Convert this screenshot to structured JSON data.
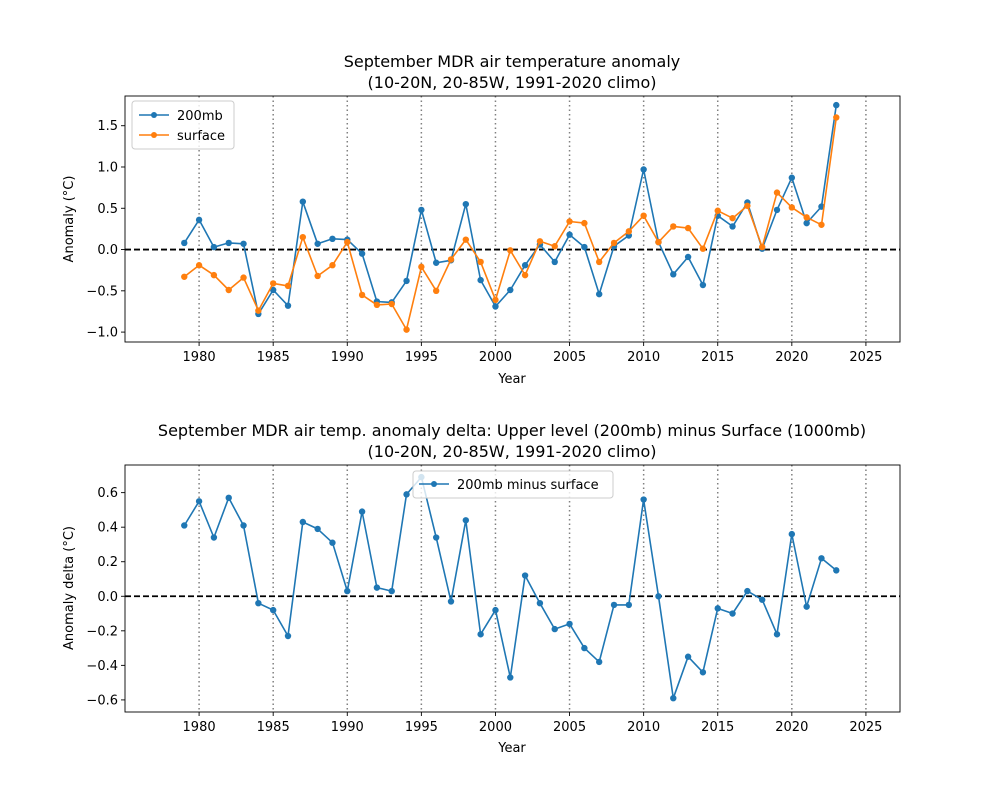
{
  "chart_data": [
    {
      "type": "line",
      "title_line1": "September MDR air temperature anomaly",
      "title_line2": "(10-20N, 20-85W, 1991-2020 climo)",
      "xlabel": "Year",
      "ylabel": "Anomaly (°C)",
      "xlim": [
        1975,
        2027.3
      ],
      "ylim": [
        -1.12,
        1.86
      ],
      "xticks": [
        1980,
        1985,
        1990,
        1995,
        2000,
        2005,
        2010,
        2015,
        2020,
        2025
      ],
      "yticks": [
        -1.0,
        -0.5,
        0.0,
        0.5,
        1.0,
        1.5
      ],
      "ytick_labels": [
        "−1.0",
        "−0.5",
        "0.0",
        "0.5",
        "1.0",
        "1.5"
      ],
      "legend_position": "upper-left",
      "x": [
        1979,
        1980,
        1981,
        1982,
        1983,
        1984,
        1985,
        1986,
        1987,
        1988,
        1989,
        1990,
        1991,
        1992,
        1993,
        1994,
        1995,
        1996,
        1997,
        1998,
        1999,
        2000,
        2001,
        2002,
        2003,
        2004,
        2005,
        2006,
        2007,
        2008,
        2009,
        2010,
        2011,
        2012,
        2013,
        2014,
        2015,
        2016,
        2017,
        2018,
        2019,
        2020,
        2021,
        2022,
        2023
      ],
      "series": [
        {
          "name": "200mb",
          "color": "#1f77b4",
          "values": [
            0.08,
            0.36,
            0.03,
            0.08,
            0.07,
            -0.78,
            -0.49,
            -0.68,
            0.58,
            0.07,
            0.13,
            0.12,
            -0.05,
            -0.63,
            -0.64,
            -0.38,
            0.48,
            -0.16,
            -0.13,
            0.55,
            -0.37,
            -0.69,
            -0.49,
            -0.19,
            0.06,
            -0.15,
            0.18,
            0.03,
            -0.54,
            0.04,
            0.17,
            0.97,
            0.09,
            -0.3,
            -0.09,
            -0.43,
            0.41,
            0.28,
            0.57,
            0.01,
            0.48,
            0.87,
            0.32,
            0.52,
            1.75
          ]
        },
        {
          "name": "surface",
          "color": "#ff7f0e",
          "values": [
            -0.33,
            -0.19,
            -0.31,
            -0.49,
            -0.34,
            -0.74,
            -0.41,
            -0.44,
            0.15,
            -0.32,
            -0.19,
            0.09,
            -0.55,
            -0.67,
            -0.66,
            -0.97,
            -0.21,
            -0.5,
            -0.12,
            0.12,
            -0.15,
            -0.61,
            -0.01,
            -0.31,
            0.1,
            0.04,
            0.34,
            0.32,
            -0.15,
            0.08,
            0.22,
            0.41,
            0.09,
            0.28,
            0.26,
            0.01,
            0.47,
            0.38,
            0.53,
            0.03,
            0.69,
            0.51,
            0.39,
            0.3,
            1.6
          ]
        }
      ]
    },
    {
      "type": "line",
      "title_line1": "September MDR air temp. anomaly delta: Upper level (200mb) minus Surface (1000mb)",
      "title_line2": "(10-20N, 20-85W, 1991-2020 climo)",
      "xlabel": "Year",
      "ylabel": "Anomaly delta (°C)",
      "xlim": [
        1975,
        2027.3
      ],
      "ylim": [
        -0.67,
        0.76
      ],
      "xticks": [
        1980,
        1985,
        1990,
        1995,
        2000,
        2005,
        2010,
        2015,
        2020,
        2025
      ],
      "yticks": [
        -0.6,
        -0.4,
        -0.2,
        0.0,
        0.2,
        0.4,
        0.6
      ],
      "ytick_labels": [
        "−0.6",
        "−0.4",
        "−0.2",
        "0.0",
        "0.2",
        "0.4",
        "0.6"
      ],
      "legend_position": "upper-center",
      "x": [
        1979,
        1980,
        1981,
        1982,
        1983,
        1984,
        1985,
        1986,
        1987,
        1988,
        1989,
        1990,
        1991,
        1992,
        1993,
        1994,
        1995,
        1996,
        1997,
        1998,
        1999,
        2000,
        2001,
        2002,
        2003,
        2004,
        2005,
        2006,
        2007,
        2008,
        2009,
        2010,
        2011,
        2012,
        2013,
        2014,
        2015,
        2016,
        2017,
        2018,
        2019,
        2020,
        2021,
        2022,
        2023
      ],
      "series": [
        {
          "name": "200mb minus surface",
          "color": "#1f77b4",
          "values": [
            0.41,
            0.55,
            0.34,
            0.57,
            0.41,
            -0.04,
            -0.08,
            -0.23,
            0.43,
            0.39,
            0.31,
            0.03,
            0.49,
            0.05,
            0.03,
            0.59,
            0.69,
            0.34,
            -0.03,
            0.44,
            -0.22,
            -0.08,
            -0.47,
            0.12,
            -0.04,
            -0.19,
            -0.16,
            -0.3,
            -0.38,
            -0.05,
            -0.05,
            0.56,
            0.0,
            -0.59,
            -0.35,
            -0.44,
            -0.07,
            -0.1,
            0.03,
            -0.02,
            -0.22,
            0.36,
            -0.06,
            0.22,
            0.15
          ]
        }
      ]
    }
  ]
}
